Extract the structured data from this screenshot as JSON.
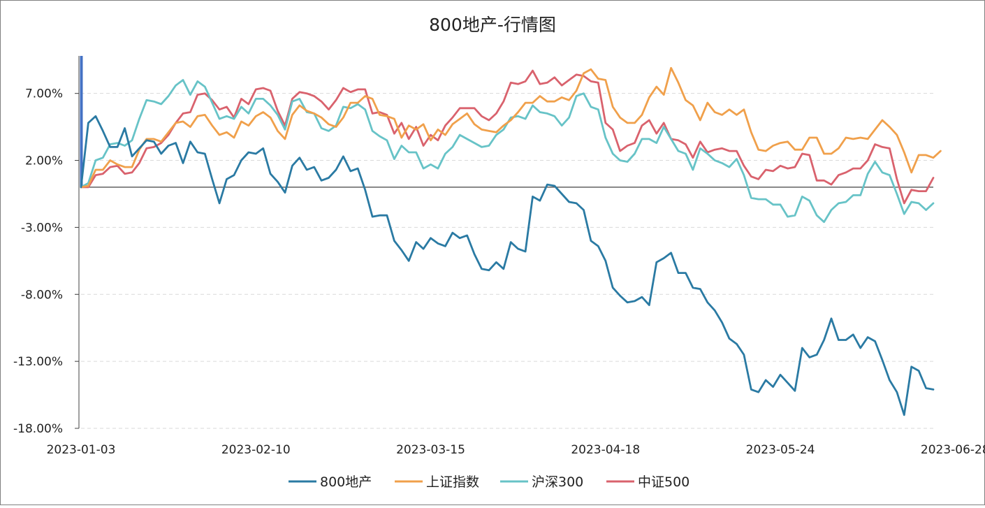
{
  "chart_data": {
    "type": "line",
    "title": "800地产-行情图",
    "xlabel": "",
    "ylabel": "",
    "ylim": [
      -18,
      9.8
    ],
    "y_ticks": [
      7,
      2,
      -3,
      -8,
      -13,
      -18
    ],
    "y_tick_labels": [
      "7.00%",
      "2.00%",
      "-3.00%",
      "-8.00%",
      "-13.00%",
      "-18.00%"
    ],
    "x_tick_indices": [
      0,
      24,
      48,
      72,
      96,
      120
    ],
    "x_tick_labels": [
      "2023-01-03",
      "2023-02-10",
      "2023-03-15",
      "2023-04-18",
      "2023-05-24",
      "2023-06-28"
    ],
    "legend_position": "bottom",
    "grid": "horizontal dashed",
    "highlight_bar_index": 0,
    "series": [
      {
        "name": "800地产",
        "color": "#2a7aa3",
        "values": [
          0,
          4.8,
          5.3,
          4.2,
          3.0,
          3.0,
          4.4,
          2.3,
          2.9,
          3.5,
          3.4,
          2.5,
          3.1,
          3.3,
          1.8,
          3.4,
          2.6,
          2.5,
          0.6,
          -1.2,
          0.6,
          0.9,
          2.0,
          2.6,
          2.5,
          2.9,
          1.0,
          0.4,
          -0.4,
          1.6,
          2.2,
          1.3,
          1.5,
          0.5,
          0.7,
          1.3,
          2.3,
          1.2,
          1.4,
          -0.2,
          -2.2,
          -2.1,
          -2.1,
          -4.0,
          -4.7,
          -5.5,
          -4.1,
          -4.6,
          -3.8,
          -4.2,
          -4.4,
          -3.4,
          -3.8,
          -3.6,
          -5.0,
          -6.1,
          -6.2,
          -5.6,
          -6.1,
          -4.1,
          -4.6,
          -4.8,
          -0.7,
          -1.0,
          0.2,
          0.1,
          -0.5,
          -1.1,
          -1.2,
          -1.7,
          -4.0,
          -4.4,
          -5.5,
          -7.5,
          -8.1,
          -8.6,
          -8.5,
          -8.2,
          -8.8,
          -5.6,
          -5.3,
          -4.9,
          -6.4,
          -6.4,
          -7.5,
          -7.6,
          -8.6,
          -9.2,
          -10.1,
          -11.3,
          -11.7,
          -12.5,
          -15.1,
          -15.3,
          -14.4,
          -14.9,
          -14.0,
          -14.6,
          -15.2,
          -12.0,
          -12.7,
          -12.5,
          -11.4,
          -9.8,
          -11.4,
          -11.4,
          -11.0,
          -12.0,
          -11.2,
          -11.5,
          -12.9,
          -14.4,
          -15.3,
          -17.0,
          -13.4,
          -13.7,
          -15.0,
          -15.1
        ]
      },
      {
        "name": "上证指数",
        "color": "#f0a04b",
        "values": [
          0,
          0.1,
          1.3,
          1.3,
          2.0,
          1.7,
          1.5,
          1.5,
          2.8,
          3.6,
          3.6,
          3.4,
          4.1,
          4.8,
          4.9,
          4.5,
          5.3,
          5.4,
          4.6,
          3.9,
          4.1,
          3.7,
          4.9,
          4.6,
          5.3,
          5.6,
          5.2,
          4.2,
          3.6,
          5.4,
          6.1,
          5.7,
          5.5,
          5.2,
          4.7,
          4.5,
          5.2,
          6.3,
          6.3,
          6.8,
          6.6,
          5.4,
          5.3,
          5.1,
          3.7,
          4.6,
          4.3,
          4.7,
          3.5,
          4.3,
          3.9,
          4.7,
          5.1,
          5.5,
          4.7,
          4.3,
          4.2,
          4.1,
          4.6,
          5.0,
          5.6,
          6.3,
          6.3,
          6.8,
          6.4,
          6.4,
          6.7,
          6.5,
          7.2,
          8.5,
          8.8,
          8.1,
          8.0,
          6.0,
          5.2,
          4.8,
          4.8,
          5.4,
          6.7,
          7.5,
          6.9,
          8.9,
          7.8,
          6.5,
          6.1,
          5.0,
          6.3,
          5.6,
          5.4,
          5.8,
          5.4,
          5.8,
          4.1,
          2.8,
          2.7,
          3.1,
          3.3,
          3.4,
          2.8,
          2.8,
          3.7,
          3.7,
          2.5,
          2.5,
          2.9,
          3.7,
          3.6,
          3.7,
          3.6,
          4.3,
          5.0,
          4.5,
          3.9,
          2.6,
          1.1,
          2.4,
          2.4,
          2.2,
          2.7
        ]
      },
      {
        "name": "沪深300",
        "color": "#67c3c7",
        "values": [
          0,
          0.3,
          2.0,
          2.2,
          3.2,
          3.3,
          3.1,
          3.5,
          5.1,
          6.5,
          6.4,
          6.2,
          6.8,
          7.6,
          8.0,
          6.9,
          7.9,
          7.5,
          6.3,
          5.1,
          5.3,
          5.1,
          6.0,
          5.5,
          6.6,
          6.6,
          6.1,
          5.4,
          4.3,
          6.4,
          6.6,
          5.6,
          5.5,
          4.4,
          4.2,
          4.6,
          6.0,
          5.9,
          6.2,
          5.8,
          4.2,
          3.8,
          3.5,
          2.1,
          3.1,
          2.6,
          2.6,
          1.4,
          1.7,
          1.4,
          2.5,
          3.0,
          3.9,
          3.6,
          3.3,
          3.0,
          3.1,
          3.9,
          4.3,
          5.2,
          5.3,
          5.1,
          6.1,
          5.6,
          5.5,
          5.3,
          4.6,
          5.2,
          6.8,
          7.0,
          6.0,
          5.8,
          3.7,
          2.5,
          2.0,
          1.9,
          2.5,
          3.6,
          3.6,
          3.3,
          4.5,
          3.6,
          2.7,
          2.5,
          1.3,
          2.9,
          2.5,
          2.0,
          1.8,
          1.5,
          2.1,
          0.9,
          -0.8,
          -0.9,
          -0.9,
          -1.3,
          -1.3,
          -2.2,
          -2.1,
          -0.7,
          -1.0,
          -2.1,
          -2.6,
          -1.7,
          -1.2,
          -1.1,
          -0.6,
          -0.6,
          1.0,
          1.9,
          1.1,
          0.9,
          -0.5,
          -2.0,
          -1.1,
          -1.2,
          -1.7,
          -1.2
        ]
      },
      {
        "name": "中证500",
        "color": "#d9626d",
        "values": [
          0,
          0,
          0.9,
          1.0,
          1.5,
          1.6,
          1.0,
          1.1,
          1.8,
          2.9,
          3.0,
          3.3,
          3.9,
          4.8,
          5.5,
          5.6,
          6.9,
          7.0,
          6.5,
          5.8,
          6.0,
          5.2,
          6.6,
          6.2,
          7.3,
          7.4,
          7.2,
          5.7,
          4.6,
          6.6,
          7.1,
          7.0,
          6.8,
          6.4,
          5.8,
          6.5,
          7.4,
          7.1,
          7.3,
          7.3,
          5.5,
          5.6,
          5.4,
          4.0,
          4.8,
          3.6,
          4.5,
          3.1,
          3.9,
          3.5,
          4.6,
          5.2,
          5.9,
          5.9,
          5.9,
          5.3,
          5.0,
          5.5,
          6.4,
          7.8,
          7.7,
          7.9,
          8.7,
          7.7,
          7.8,
          8.2,
          7.6,
          8.0,
          8.4,
          8.3,
          7.9,
          7.8,
          4.8,
          4.3,
          2.7,
          3.1,
          3.3,
          4.6,
          5.0,
          4.0,
          4.8,
          3.6,
          3.5,
          3.2,
          2.2,
          3.4,
          2.6,
          2.8,
          2.9,
          2.7,
          2.7,
          1.6,
          0.8,
          0.6,
          1.3,
          1.2,
          1.6,
          1.4,
          1.5,
          2.5,
          2.4,
          0.5,
          0.5,
          0.2,
          0.9,
          1.1,
          1.4,
          1.4,
          2.0,
          3.2,
          3.0,
          2.9,
          0.6,
          -1.2,
          -0.2,
          -0.3,
          -0.3,
          0.7
        ]
      }
    ]
  }
}
